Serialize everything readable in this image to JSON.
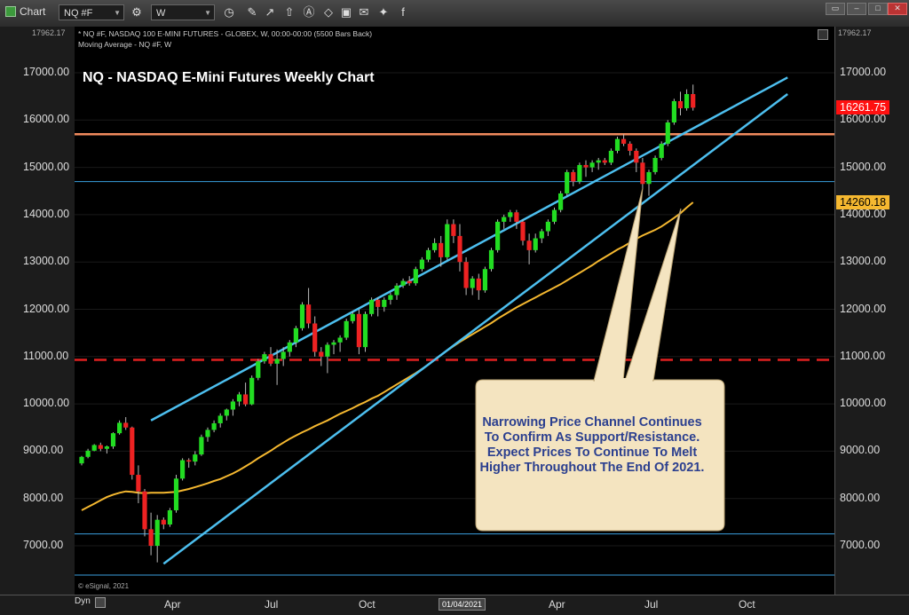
{
  "toolbar": {
    "app_label": "Chart",
    "symbol": "NQ #F",
    "interval": "W",
    "icons": [
      "settings-gear-icon",
      "clock-icon",
      "pencil-icon",
      "trend-icon",
      "arrow-up-icon",
      "text-icon",
      "eraser-icon",
      "image-icon",
      "email-icon",
      "twitter-icon",
      "facebook-icon"
    ]
  },
  "header": {
    "line1": "* NQ #F, NASDAQ 100 E-MINI FUTURES - GLOBEX, W, 00:00-00:00 (5500 Bars Back)",
    "line2": "Moving Average - NQ #F, W",
    "top_value": "17962.17"
  },
  "chart_data": {
    "type": "candlestick",
    "title": "NQ - NASDAQ E-Mini Futures Weekly Chart",
    "ylim": [
      6300,
      17962.17
    ],
    "yticks": [
      7000,
      8000,
      9000,
      10000,
      11000,
      12000,
      13000,
      14000,
      15000,
      16000,
      17000
    ],
    "ytick_labels": [
      "7000.00",
      "8000.00",
      "9000.00",
      "10000.00",
      "11000.00",
      "12000.00",
      "13000.00",
      "14000.00",
      "15000.00",
      "16000.00",
      "17000.00"
    ],
    "xtick_labels": [
      "Apr",
      "Jul",
      "Oct",
      "01/04/2021",
      "Apr",
      "Jul",
      "Oct"
    ],
    "bars_start": "2020-01-06",
    "candles_ohlc": [
      [
        8742,
        8900,
        8700,
        8880
      ],
      [
        8880,
        9050,
        8850,
        9010
      ],
      [
        9010,
        9150,
        9000,
        9130
      ],
      [
        9130,
        9180,
        9000,
        9050
      ],
      [
        9050,
        9120,
        8950,
        9100
      ],
      [
        9100,
        9400,
        9050,
        9380
      ],
      [
        9380,
        9650,
        9350,
        9600
      ],
      [
        9600,
        9720,
        9450,
        9500
      ],
      [
        9500,
        9520,
        8400,
        8500
      ],
      [
        8500,
        8700,
        7900,
        8150
      ],
      [
        8150,
        8200,
        7200,
        7350
      ],
      [
        7350,
        7700,
        6800,
        7000
      ],
      [
        7000,
        7650,
        6650,
        7550
      ],
      [
        7550,
        7600,
        7350,
        7450
      ],
      [
        7450,
        7800,
        7400,
        7750
      ],
      [
        7750,
        8500,
        7700,
        8420
      ],
      [
        8420,
        8850,
        8380,
        8810
      ],
      [
        8810,
        8850,
        8650,
        8780
      ],
      [
        8780,
        9000,
        8700,
        8930
      ],
      [
        8930,
        9350,
        8900,
        9300
      ],
      [
        9300,
        9500,
        9200,
        9450
      ],
      [
        9450,
        9650,
        9400,
        9590
      ],
      [
        9590,
        9800,
        9500,
        9750
      ],
      [
        9750,
        9900,
        9650,
        9880
      ],
      [
        9880,
        10100,
        9750,
        10050
      ],
      [
        10050,
        10250,
        9950,
        10200
      ],
      [
        10200,
        10450,
        9950,
        9990
      ],
      [
        9990,
        10600,
        9970,
        10550
      ],
      [
        10550,
        10950,
        10500,
        10900
      ],
      [
        10900,
        11100,
        10850,
        11050
      ],
      [
        11050,
        11200,
        10800,
        10850
      ],
      [
        10850,
        11150,
        10400,
        10950
      ],
      [
        10950,
        11200,
        10800,
        11100
      ],
      [
        11100,
        11350,
        11000,
        11300
      ],
      [
        11300,
        11650,
        11200,
        11600
      ],
      [
        11600,
        12150,
        11550,
        12100
      ],
      [
        12100,
        12450,
        11600,
        11700
      ],
      [
        11700,
        11850,
        11000,
        11100
      ],
      [
        11100,
        11200,
        10800,
        11000
      ],
      [
        11000,
        11300,
        10650,
        11250
      ],
      [
        11250,
        11350,
        11050,
        11300
      ],
      [
        11300,
        11450,
        11100,
        11400
      ],
      [
        11400,
        11800,
        11350,
        11750
      ],
      [
        11750,
        11950,
        11700,
        11900
      ],
      [
        11900,
        12000,
        11050,
        11200
      ],
      [
        11200,
        11950,
        11100,
        11900
      ],
      [
        11900,
        12250,
        11850,
        12200
      ],
      [
        12200,
        12250,
        11850,
        12050
      ],
      [
        12050,
        12250,
        11950,
        12200
      ],
      [
        12200,
        12350,
        12100,
        12300
      ],
      [
        12300,
        12550,
        12200,
        12500
      ],
      [
        12500,
        12650,
        12450,
        12600
      ],
      [
        12600,
        12700,
        12500,
        12550
      ],
      [
        12550,
        12900,
        12500,
        12850
      ],
      [
        12850,
        13100,
        12800,
        13050
      ],
      [
        13050,
        13300,
        13000,
        13250
      ],
      [
        13250,
        13500,
        13200,
        13400
      ],
      [
        13400,
        13550,
        12900,
        13100
      ],
      [
        13100,
        13900,
        13050,
        13800
      ],
      [
        13800,
        13900,
        13400,
        13550
      ],
      [
        13550,
        13800,
        12800,
        13000
      ],
      [
        13000,
        13100,
        12300,
        12450
      ],
      [
        12450,
        12700,
        12300,
        12650
      ],
      [
        12650,
        12750,
        12200,
        12400
      ],
      [
        12400,
        12900,
        12350,
        12850
      ],
      [
        12850,
        13300,
        12800,
        13250
      ],
      [
        13250,
        13900,
        13200,
        13850
      ],
      [
        13850,
        14000,
        13700,
        13950
      ],
      [
        13950,
        14100,
        13850,
        14050
      ],
      [
        14050,
        14100,
        13700,
        13850
      ],
      [
        13850,
        13900,
        13350,
        13450
      ],
      [
        13450,
        13600,
        12950,
        13250
      ],
      [
        13250,
        13600,
        13200,
        13500
      ],
      [
        13500,
        13700,
        13400,
        13650
      ],
      [
        13650,
        13900,
        13550,
        13850
      ],
      [
        13850,
        14150,
        13800,
        14100
      ],
      [
        14100,
        14500,
        14050,
        14450
      ],
      [
        14450,
        14950,
        14400,
        14900
      ],
      [
        14900,
        14950,
        14600,
        14700
      ],
      [
        14700,
        15100,
        14650,
        15050
      ],
      [
        15050,
        15150,
        14800,
        15000
      ],
      [
        15000,
        15150,
        14900,
        15100
      ],
      [
        15100,
        15200,
        14950,
        15150
      ],
      [
        15150,
        15200,
        15050,
        15100
      ],
      [
        15100,
        15400,
        15050,
        15350
      ],
      [
        15350,
        15650,
        15300,
        15600
      ],
      [
        15600,
        15700,
        15450,
        15500
      ],
      [
        15500,
        15550,
        15250,
        15350
      ],
      [
        15350,
        15400,
        14900,
        15100
      ],
      [
        15100,
        15200,
        14550,
        14650
      ],
      [
        14650,
        14950,
        14400,
        14900
      ],
      [
        14900,
        15250,
        14850,
        15200
      ],
      [
        15200,
        15550,
        15150,
        15500
      ],
      [
        15500,
        16000,
        15450,
        15950
      ],
      [
        15950,
        16450,
        15900,
        16400
      ],
      [
        16400,
        16600,
        16100,
        16250
      ],
      [
        16250,
        16650,
        16200,
        16550
      ],
      [
        16550,
        16750,
        16200,
        16262
      ]
    ],
    "moving_average": {
      "start_bar": 0,
      "values": [
        7750,
        7820,
        7890,
        7960,
        8030,
        8080,
        8120,
        8150,
        8140,
        8120,
        8110,
        8120,
        8120,
        8120,
        8130,
        8140,
        8170,
        8200,
        8240,
        8280,
        8320,
        8370,
        8410,
        8470,
        8530,
        8600,
        8680,
        8760,
        8850,
        8930,
        9010,
        9100,
        9180,
        9260,
        9330,
        9400,
        9460,
        9530,
        9590,
        9650,
        9720,
        9790,
        9850,
        9910,
        9980,
        10040,
        10110,
        10170,
        10250,
        10330,
        10410,
        10490,
        10570,
        10650,
        10740,
        10830,
        10930,
        11030,
        11130,
        11220,
        11310,
        11390,
        11470,
        11550,
        11630,
        11710,
        11800,
        11880,
        11960,
        12040,
        12110,
        12180,
        12250,
        12320,
        12390,
        12460,
        12530,
        12610,
        12690,
        12770,
        12850,
        12930,
        13020,
        13100,
        13180,
        13260,
        13330,
        13410,
        13490,
        13560,
        13620,
        13680,
        13750,
        13840,
        13930,
        14030,
        14150,
        14260
      ]
    },
    "horizontal_lines": [
      {
        "value": 15700,
        "color": "#f08a5d",
        "style": "solid"
      },
      {
        "value": 14700,
        "color": "#3aa0e0",
        "style": "solid-thin"
      },
      {
        "value": 10930,
        "color": "#e02020",
        "style": "dashed"
      },
      {
        "value": 7250,
        "color": "#3aa0e0",
        "style": "solid-thin"
      },
      {
        "value": 6380,
        "color": "#3aa0e0",
        "style": "solid-thin"
      }
    ],
    "channel_lines": [
      {
        "from": [
          11,
          9650
        ],
        "to": [
          112,
          16900
        ]
      },
      {
        "from": [
          13,
          6620
        ],
        "to": [
          112,
          16550
        ]
      }
    ],
    "last_price": {
      "value": 16261.75,
      "label": "16261.75",
      "bg": "#ff1010",
      "color": "#ffffff"
    },
    "ma_value": {
      "value": 14260.18,
      "label": "14260.18",
      "bg": "#f5b830",
      "color": "#000000"
    },
    "annotation": "Narrowing Price Channel Continues To Confirm As Support/Resistance.  Expect Prices To Continue To Melt Higher Throughout The End Of 2021.",
    "colors": {
      "up": "#22dd22",
      "down": "#ee2222",
      "ma": "#f5b830",
      "channel": "#4dbfef",
      "bubble": "#f4e4c0"
    }
  },
  "footer": {
    "copyright": "© eSignal, 2021",
    "dyn_label": "Dyn"
  }
}
